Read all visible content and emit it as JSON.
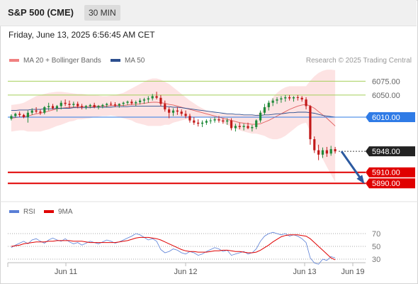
{
  "header": {
    "title": "S&P 500 (CME)",
    "interval": "30 MIN"
  },
  "timestamp": "Friday, June 13, 2025 6:56:45 AM CET",
  "legend": {
    "bollinger": {
      "label": "MA 20 + Bollinger Bands",
      "color": "#f08080"
    },
    "ma50": {
      "label": "MA 50",
      "color": "#2c4f8f"
    }
  },
  "copyright": "Research © 2025 Trading Central",
  "rsi_legend": {
    "rsi": {
      "label": "RSI",
      "color": "#5a7fd6"
    },
    "ma9": {
      "label": "9MA",
      "color": "#e00000"
    }
  },
  "chart_data": {
    "type": "candlestick",
    "price_range": [
      5862,
      6100
    ],
    "candles": [
      [
        6007,
        6015,
        6004,
        6012
      ],
      [
        6012,
        6018,
        6009,
        6016
      ],
      [
        6016,
        6020,
        6010,
        6014
      ],
      [
        6014,
        6016,
        6008,
        6010
      ],
      [
        6010,
        6022,
        6000,
        6018
      ],
      [
        6018,
        6026,
        6014,
        6022
      ],
      [
        6022,
        6028,
        6017,
        6020
      ],
      [
        6020,
        6024,
        6014,
        6018
      ],
      [
        6018,
        6030,
        6015,
        6028
      ],
      [
        6028,
        6036,
        6022,
        6030
      ],
      [
        6030,
        6034,
        6024,
        6026
      ],
      [
        6026,
        6032,
        6020,
        6030
      ],
      [
        6030,
        6040,
        6024,
        6036
      ],
      [
        6036,
        6042,
        6030,
        6034
      ],
      [
        6034,
        6040,
        6026,
        6032
      ],
      [
        6032,
        6038,
        6028,
        6034
      ],
      [
        6034,
        6038,
        6026,
        6030
      ],
      [
        6030,
        6034,
        6024,
        6028
      ],
      [
        6028,
        6032,
        6024,
        6030
      ],
      [
        6030,
        6034,
        6026,
        6032
      ],
      [
        6032,
        6036,
        6026,
        6028
      ],
      [
        6028,
        6032,
        6024,
        6030
      ],
      [
        6030,
        6034,
        6026,
        6032
      ],
      [
        6032,
        6036,
        6028,
        6034
      ],
      [
        6034,
        6038,
        6030,
        6033
      ],
      [
        6033,
        6037,
        6028,
        6031
      ],
      [
        6031,
        6035,
        6027,
        6034
      ],
      [
        6034,
        6038,
        6030,
        6036
      ],
      [
        6036,
        6040,
        6032,
        6038
      ],
      [
        6038,
        6042,
        6032,
        6035
      ],
      [
        6035,
        6040,
        6030,
        6037
      ],
      [
        6037,
        6044,
        6033,
        6040
      ],
      [
        6040,
        6045,
        6034,
        6042
      ],
      [
        6042,
        6048,
        6036,
        6044
      ],
      [
        6044,
        6052,
        6040,
        6048
      ],
      [
        6048,
        6056,
        6042,
        6045
      ],
      [
        6045,
        6050,
        6030,
        6034
      ],
      [
        6034,
        6040,
        6020,
        6024
      ],
      [
        6024,
        6028,
        6008,
        6018
      ],
      [
        6018,
        6026,
        6012,
        6022
      ],
      [
        6022,
        6028,
        6014,
        6020
      ],
      [
        6020,
        6024,
        6012,
        6016
      ],
      [
        6016,
        6022,
        6008,
        6012
      ],
      [
        6012,
        6016,
        6000,
        6004
      ],
      [
        6004,
        6010,
        5996,
        6000
      ],
      [
        6000,
        6006,
        5993,
        5998
      ],
      [
        5998,
        6004,
        5992,
        6000
      ],
      [
        6000,
        6006,
        5996,
        6003
      ],
      [
        6003,
        6008,
        5998,
        6004
      ],
      [
        6004,
        6010,
        6000,
        6006
      ],
      [
        6006,
        6012,
        6000,
        6004
      ],
      [
        6004,
        6008,
        5998,
        6002
      ],
      [
        6002,
        6008,
        5996,
        6004
      ],
      [
        6004,
        6008,
        5986,
        5990
      ],
      [
        5990,
        5998,
        5984,
        5994
      ],
      [
        5994,
        6000,
        5988,
        5992
      ],
      [
        5992,
        5998,
        5986,
        5994
      ],
      [
        5994,
        6000,
        5988,
        5990
      ],
      [
        5990,
        5996,
        5984,
        5992
      ],
      [
        5992,
        6006,
        5988,
        6004
      ],
      [
        6004,
        6022,
        6000,
        6018
      ],
      [
        6018,
        6034,
        6014,
        6028
      ],
      [
        6028,
        6040,
        6022,
        6036
      ],
      [
        6036,
        6044,
        6030,
        6040
      ],
      [
        6040,
        6046,
        6034,
        6042
      ],
      [
        6042,
        6048,
        6036,
        6044
      ],
      [
        6044,
        6050,
        6038,
        6046
      ],
      [
        6046,
        6050,
        6040,
        6044
      ],
      [
        6044,
        6048,
        6038,
        6046
      ],
      [
        6046,
        6050,
        6040,
        6045
      ],
      [
        6045,
        6048,
        6038,
        6042
      ],
      [
        6042,
        6046,
        6024,
        6030
      ],
      [
        6030,
        6032,
        5960,
        5970
      ],
      [
        5970,
        5975,
        5945,
        5950
      ],
      [
        5950,
        5960,
        5932,
        5942
      ],
      [
        5942,
        5955,
        5936,
        5950
      ],
      [
        5950,
        5956,
        5938,
        5944
      ],
      [
        5944,
        5958,
        5940,
        5952
      ],
      [
        5952,
        5956,
        5944,
        5948
      ]
    ],
    "ma20": [
      6008,
      6009,
      6010,
      6011,
      6012,
      6014,
      6016,
      6017,
      6019,
      6021,
      6023,
      6025,
      6026,
      6027,
      6028,
      6028,
      6029,
      6029,
      6029,
      6029,
      6030,
      6030,
      6030,
      6030,
      6031,
      6031,
      6031,
      6031,
      6032,
      6033,
      6033,
      6034,
      6035,
      6036,
      6037,
      6037,
      6036,
      6035,
      6033,
      6032,
      6030,
      6028,
      6026,
      6024,
      6022,
      6020,
      6018,
      6016,
      6014,
      6012,
      6010,
      6008,
      6006,
      6004,
      6002,
      6000,
      5999,
      5998,
      5997,
      5997,
      5998,
      6001,
      6004,
      6008,
      6012,
      6016,
      6020,
      6024,
      6027,
      6030,
      6032,
      6033,
      6030,
      6026,
      6020,
      6014,
      6008,
      6001,
      5994
    ],
    "bb_upper": [
      6032,
      6033,
      6034,
      6036,
      6040,
      6044,
      6048,
      6050,
      6052,
      6054,
      6055,
      6056,
      6056,
      6055,
      6054,
      6053,
      6052,
      6052,
      6051,
      6050,
      6050,
      6049,
      6048,
      6048,
      6049,
      6050,
      6052,
      6054,
      6058,
      6062,
      6066,
      6070,
      6074,
      6078,
      6080,
      6080,
      6078,
      6074,
      6070,
      6064,
      6058,
      6052,
      6046,
      6040,
      6035,
      6030,
      6026,
      6022,
      6020,
      6018,
      6016,
      6016,
      6016,
      6015,
      6014,
      6014,
      6014,
      6014,
      6014,
      6014,
      6018,
      6026,
      6036,
      6046,
      6054,
      6060,
      6064,
      6066,
      6066,
      6066,
      6066,
      6066,
      6076,
      6084,
      6090,
      6094,
      6096,
      6096,
      6095
    ],
    "bb_lower": [
      5984,
      5985,
      5986,
      5986,
      5984,
      5984,
      5984,
      5984,
      5986,
      5988,
      5991,
      5994,
      5996,
      5999,
      6002,
      6003,
      6006,
      6006,
      6007,
      6008,
      6010,
      6011,
      6012,
      6012,
      6013,
      6012,
      6010,
      6008,
      6006,
      6004,
      6000,
      5998,
      5996,
      5994,
      5994,
      5994,
      5994,
      5996,
      5996,
      6000,
      6002,
      6004,
      6006,
      6008,
      6009,
      6010,
      6010,
      6010,
      6008,
      6006,
      6004,
      6000,
      5996,
      5993,
      5990,
      5986,
      5984,
      5982,
      5980,
      5980,
      5978,
      5976,
      5972,
      5970,
      5970,
      5972,
      5976,
      5982,
      5988,
      5994,
      5998,
      6000,
      5984,
      5968,
      5950,
      5934,
      5920,
      5906,
      5893
    ],
    "ma50": [
      6022,
      6022,
      6023,
      6023,
      6023,
      6024,
      6024,
      6024,
      6025,
      6025,
      6025,
      6026,
      6026,
      6026,
      6026,
      6027,
      6027,
      6027,
      6027,
      6027,
      6028,
      6028,
      6028,
      6028,
      6028,
      6029,
      6029,
      6029,
      6029,
      6030,
      6030,
      6030,
      6030,
      6030,
      6030,
      6030,
      6030,
      6029,
      6029,
      6028,
      6028,
      6027,
      6026,
      6025,
      6024,
      6023,
      6022,
      6021,
      6020,
      6019,
      6018,
      6017,
      6016,
      6016,
      6015,
      6015,
      6014,
      6014,
      6014,
      6013,
      6013,
      6014,
      6014,
      6015,
      6016,
      6016,
      6017,
      6018,
      6018,
      6019,
      6019,
      6019,
      6018,
      6017,
      6015,
      6013,
      6012,
      6011,
      6010
    ],
    "levels": [
      {
        "value": 6075.0,
        "label": "6075.00",
        "kind": "resistance",
        "color": "#a5cf5a"
      },
      {
        "value": 6050.0,
        "label": "6050.00",
        "kind": "resistance",
        "color": "#a5cf5a"
      },
      {
        "value": 6010.0,
        "label": "6010.00",
        "kind": "pivot",
        "color": "#2f7be6"
      },
      {
        "value": 5948.0,
        "label": "5948.00",
        "kind": "last",
        "color": "#222222"
      },
      {
        "value": 5910.0,
        "label": "5910.00",
        "kind": "support",
        "color": "#e00000"
      },
      {
        "value": 5890.0,
        "label": "5890.00",
        "kind": "support",
        "color": "#e00000"
      }
    ],
    "projection": {
      "from": 5948,
      "to": 5890,
      "color": "#2c5aa0"
    },
    "rsi": {
      "range": [
        0,
        100
      ],
      "ticks": [
        "70",
        "50",
        "30"
      ],
      "rsi": [
        48,
        52,
        55,
        58,
        54,
        60,
        62,
        58,
        55,
        60,
        63,
        60,
        58,
        62,
        57,
        54,
        56,
        52,
        55,
        58,
        56,
        54,
        57,
        60,
        58,
        55,
        57,
        60,
        63,
        66,
        70,
        68,
        64,
        60,
        62,
        58,
        45,
        40,
        42,
        46,
        44,
        40,
        38,
        42,
        40,
        36,
        38,
        42,
        45,
        48,
        46,
        42,
        44,
        36,
        38,
        40,
        42,
        38,
        40,
        46,
        58,
        66,
        70,
        72,
        70,
        68,
        70,
        66,
        68,
        66,
        62,
        56,
        32,
        24,
        22,
        30,
        28,
        34,
        32
      ],
      "ma9": [
        50,
        51,
        52,
        54,
        55,
        56,
        57,
        57,
        57,
        58,
        58,
        59,
        59,
        59,
        59,
        58,
        58,
        58,
        57,
        56,
        56,
        56,
        56,
        56,
        56,
        56,
        57,
        58,
        59,
        61,
        63,
        64,
        64,
        64,
        63,
        62,
        60,
        57,
        54,
        51,
        48,
        45,
        43,
        42,
        42,
        41,
        41,
        41,
        42,
        43,
        43,
        44,
        44,
        43,
        42,
        42,
        41,
        40,
        40,
        41,
        44,
        48,
        52,
        57,
        61,
        65,
        67,
        68,
        68,
        68,
        67,
        66,
        62,
        56,
        50,
        44,
        38,
        32,
        29
      ]
    },
    "x_ticks": [
      "Jun 11",
      "Jun 12",
      "Jun 13",
      "Jun 19"
    ]
  }
}
